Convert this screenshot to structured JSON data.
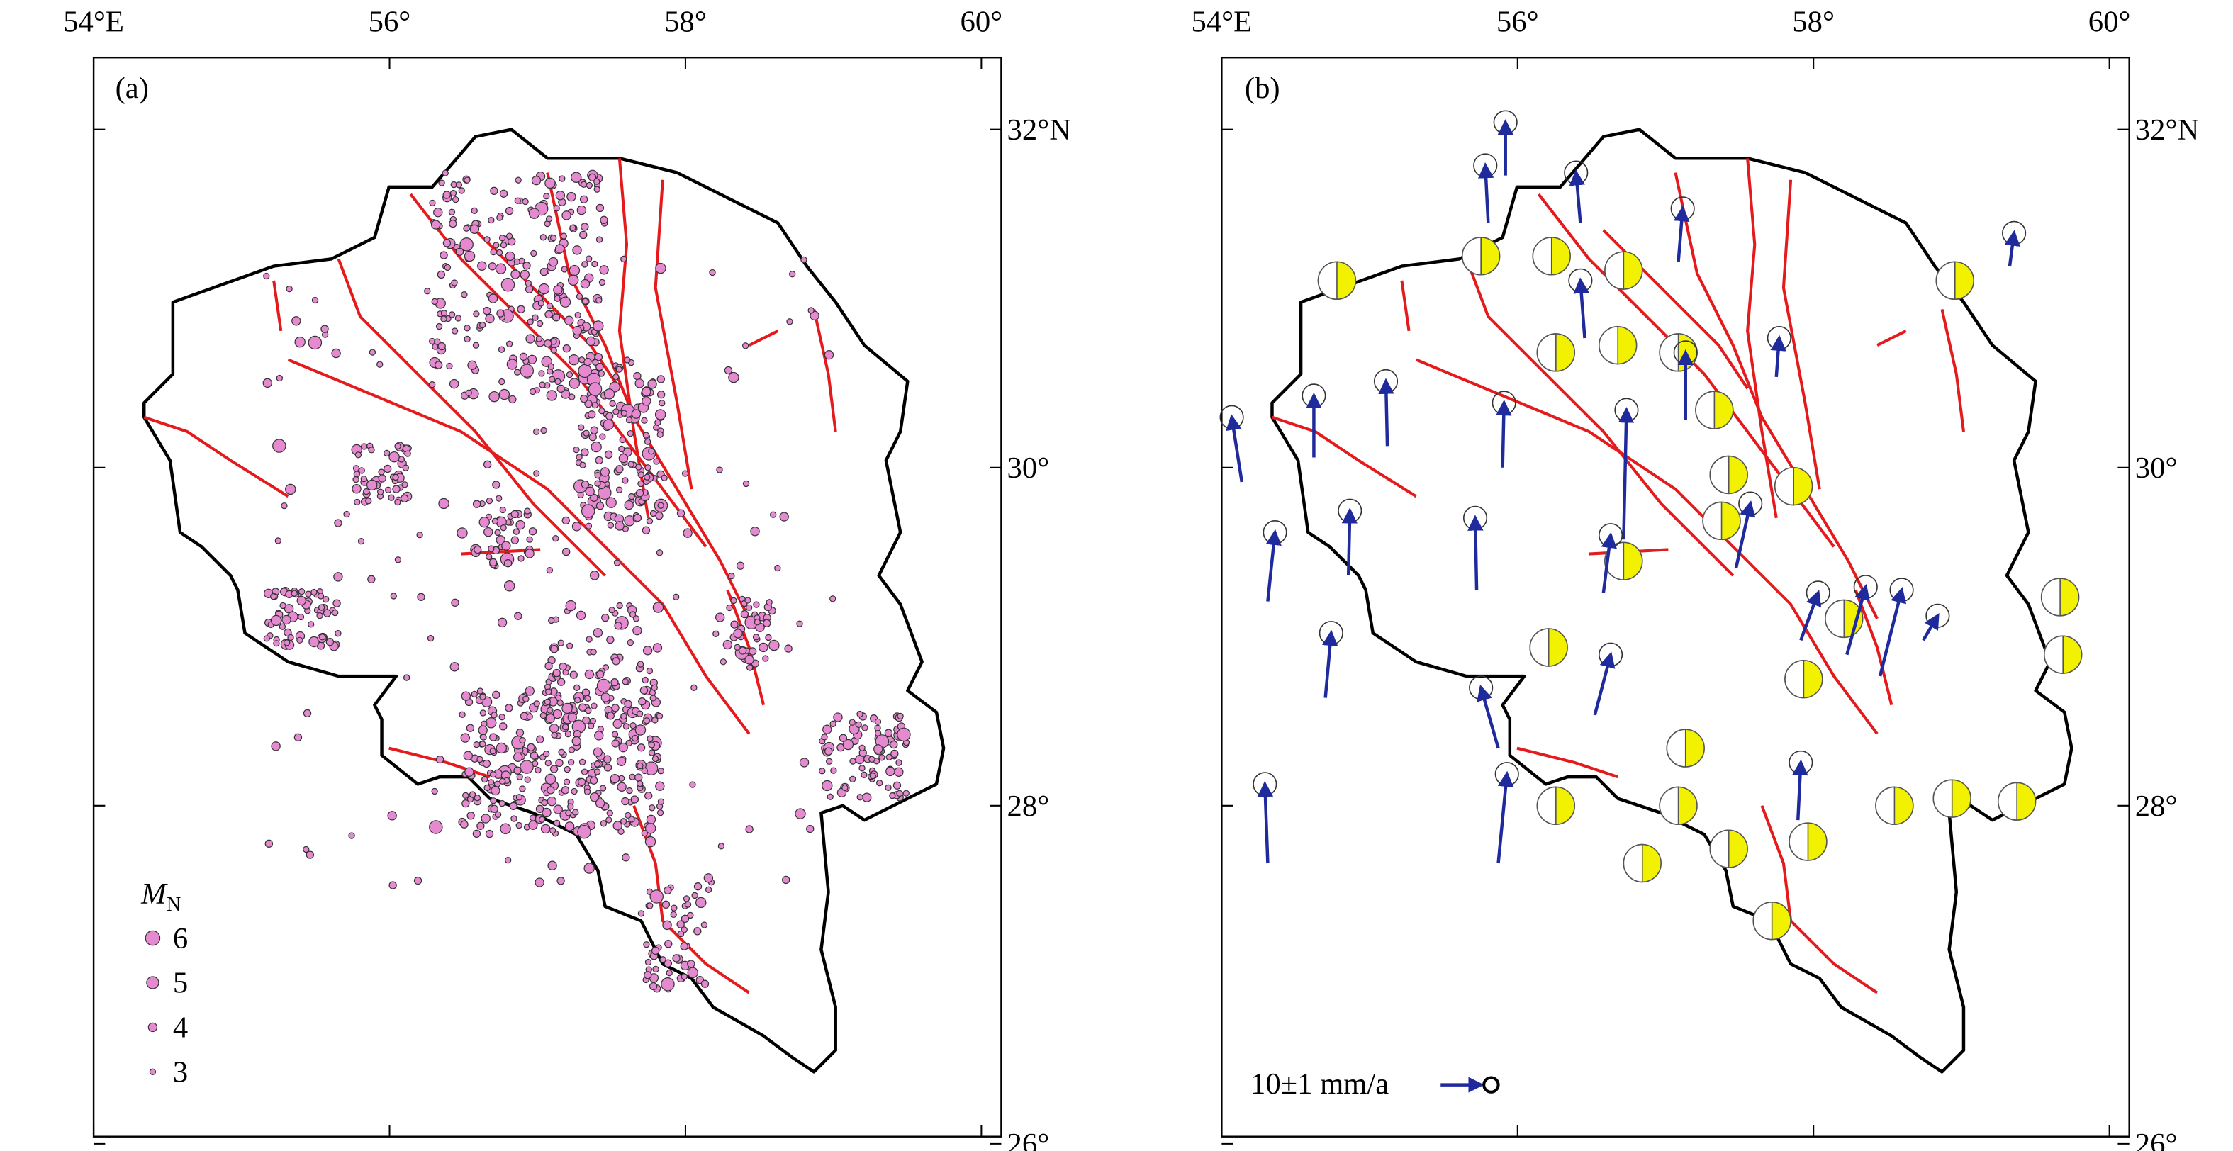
{
  "panels": [
    {
      "label": "(a)",
      "lon_ticks": [
        {
          "value": 54,
          "label": "54°E"
        },
        {
          "value": 56,
          "label": "56°"
        },
        {
          "value": 58,
          "label": "58°"
        },
        {
          "value": 60,
          "label": "60°"
        }
      ],
      "lat_ticks": [
        {
          "value": 32,
          "label": "32°N"
        },
        {
          "value": 30,
          "label": "30°"
        },
        {
          "value": 28,
          "label": "28°"
        },
        {
          "value": 26,
          "label": "26°"
        }
      ],
      "legend": {
        "title": "M",
        "title_subscript": "N",
        "items": [
          "6",
          "5",
          "4",
          "3"
        ]
      }
    },
    {
      "label": "(b)",
      "lon_ticks": [
        {
          "value": 54,
          "label": "54°E"
        },
        {
          "value": 56,
          "label": "56°"
        },
        {
          "value": 58,
          "label": "58°"
        },
        {
          "value": 60,
          "label": "60°"
        }
      ],
      "lat_ticks": [
        {
          "value": 32,
          "label": "32°N"
        },
        {
          "value": 30,
          "label": "30°"
        },
        {
          "value": 28,
          "label": "28°"
        },
        {
          "value": 26,
          "label": "26°"
        }
      ],
      "scale_label": "10±1 mm/a"
    }
  ]
}
